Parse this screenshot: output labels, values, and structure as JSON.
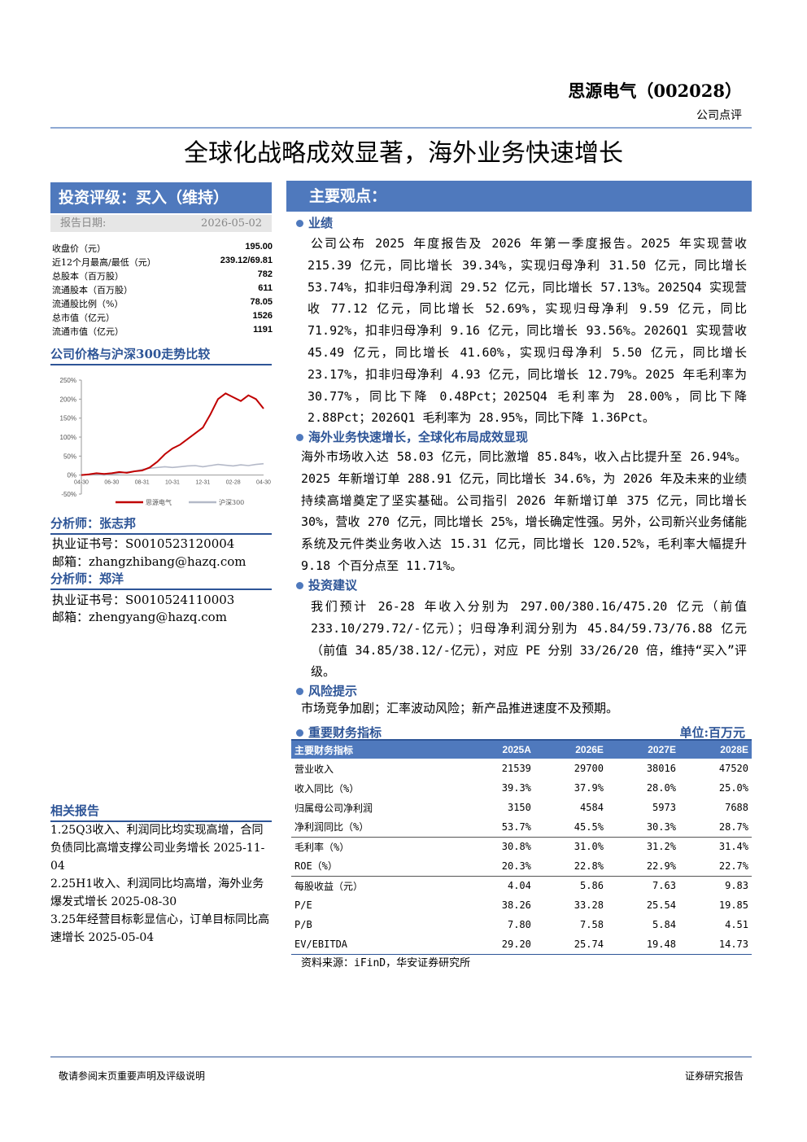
{
  "header": {
    "company": "思源电气（002028）",
    "doc_type": "公司点评"
  },
  "title": "全球化战略成效显著，海外业务快速增长",
  "rating": {
    "text": "投资评级：买入（维持）",
    "date_label": "报告日期:",
    "date": "2026-05-02"
  },
  "stats": [
    [
      "收盘价（元）",
      "195.00"
    ],
    [
      "近12个月最高/最低（元）",
      "239.12/69.81"
    ],
    [
      "总股本（百万股）",
      "782"
    ],
    [
      "流通股本（百万股）",
      "611"
    ],
    [
      "流通股比例（%）",
      "78.05"
    ],
    [
      "总市值（亿元）",
      "1526"
    ],
    [
      "流通市值（亿元）",
      "1191"
    ]
  ],
  "chart_data": {
    "type": "line",
    "title": "公司价格与沪深300走势比较",
    "categories": [
      "04-30",
      null,
      null,
      null,
      "06-30",
      null,
      null,
      null,
      "08-31",
      null,
      null,
      null,
      "10-31",
      null,
      null,
      null,
      "12-31",
      null,
      null,
      null,
      "02-28",
      null,
      null,
      null,
      "04-30"
    ],
    "series": [
      {
        "name": "思源电气",
        "color": "#c00000",
        "values": [
          0,
          2,
          5,
          3,
          5,
          8,
          6,
          10,
          12,
          20,
          35,
          55,
          70,
          80,
          95,
          110,
          125,
          160,
          200,
          215,
          205,
          195,
          210,
          200,
          175
        ]
      },
      {
        "name": "沪深300",
        "color": "#b4b9c8",
        "values": [
          0,
          1,
          2,
          0,
          3,
          5,
          8,
          10,
          15,
          18,
          20,
          22,
          20,
          22,
          24,
          25,
          22,
          25,
          28,
          26,
          24,
          27,
          25,
          28,
          30
        ]
      }
    ],
    "ylim": [
      -50,
      250
    ],
    "yticks": [
      {
        "value": 250,
        "label": "250%"
      },
      {
        "value": 200,
        "label": "200%"
      },
      {
        "value": 150,
        "label": "150%"
      },
      {
        "value": 100,
        "label": "100%"
      },
      {
        "value": 50,
        "label": "50%"
      },
      {
        "value": 0,
        "label": "0%"
      },
      {
        "value": -50,
        "label": "-50%"
      }
    ],
    "grid": false,
    "legend": "bottom"
  },
  "analysts": [
    {
      "heading": "分析师：张志邦",
      "license": "执业证书号：S0010523120004",
      "email": "邮箱：zhangzhibang@hazq.com"
    },
    {
      "heading": "分析师：郑洋",
      "license": "执业证书号：S0010524110003",
      "email": "邮箱：zhengyang@hazq.com"
    }
  ],
  "related": {
    "heading": "相关报告",
    "items": [
      "1.25Q3收入、利润同比均实现高增，合同负债同比高增支撑公司业务增长 2025-11-04",
      "2.25H1收入、利润同比均高增，海外业务爆发式增长 2025-08-30",
      "3.25年经营目标彰显信心，订单目标同比高速增长 2025-05-04"
    ]
  },
  "main": {
    "heading": "主要观点：",
    "sections": [
      {
        "heading": "业绩",
        "text": "公司公布 2025 年度报告及 2026 年第一季度报告。2025 年实现营收 215.39 亿元，同比增长 39.34%，实现归母净利 31.50 亿元，同比增长 53.74%，扣非归母净利润 29.52 亿元，同比增长 57.13%。2025Q4 实现营收 77.12 亿元，同比增长 52.69%，实现归母净利 9.59 亿元，同比 71.92%，扣非归母净利 9.16 亿元，同比增长 93.56%。2026Q1 实现营收 45.49 亿元，同比增长 41.60%，实现归母净利 5.50 亿元，同比增长 23.17%，扣非归母净利 4.93 亿元，同比增长 12.79%。2025 年毛利率为 30.77%，同比下降 0.48Pct；2025Q4 毛利率为 28.00%，同比下降 2.88Pct；2026Q1 毛利率为 28.95%，同比下降 1.36Pct。"
      },
      {
        "heading": "海外业务快速增长，全球化布局成效显现",
        "text": "海外市场收入达 58.03 亿元，同比激增 85.84%，收入占比提升至 26.94%。2025 年新增订单 288.91 亿元，同比增长 34.6%，为 2026 年及未来的业绩持续高增奠定了坚实基础。公司指引 2026 年新增订单 375 亿元，同比增长 30%，营收 270 亿元，同比增长 25%，增长确定性强。另外，公司新兴业务储能系统及元件类业务收入达 15.31 亿元，同比增长 120.52%，毛利率大幅提升 9.18 个百分点至 11.71%。"
      },
      {
        "heading": "投资建议",
        "text": "我们预计 26-28 年收入分别为 297.00/380.16/475.20 亿元（前值 233.10/279.72/-亿元）；归母净利润分别为 45.84/59.73/76.88 亿元（前值 34.85/38.12/-亿元），对应 PE 分别 33/26/20 倍，维持“买入”评级。"
      },
      {
        "heading": "风险提示",
        "text": "市场竞争加剧；汇率波动风险；新产品推进速度不及预期。"
      }
    ]
  },
  "table": {
    "heading": "重要财务指标",
    "unit": "单位:百万元",
    "columns": [
      "主要财务指标",
      "2025A",
      "2026E",
      "2027E",
      "2028E"
    ],
    "rows": [
      [
        "营业收入",
        "21539",
        "29700",
        "38016",
        "47520"
      ],
      [
        "收入同比（%）",
        "39.3%",
        "37.9%",
        "28.0%",
        "25.0%"
      ],
      [
        "归属母公司净利润",
        "3150",
        "4584",
        "5973",
        "7688"
      ],
      [
        "净利润同比（%）",
        "53.7%",
        "45.5%",
        "30.3%",
        "28.7%"
      ],
      [
        "毛利率（%）",
        "30.8%",
        "31.0%",
        "31.2%",
        "31.4%"
      ],
      [
        "ROE（%）",
        "20.3%",
        "22.8%",
        "22.9%",
        "22.7%"
      ],
      [
        "每股收益（元）",
        "4.04",
        "5.86",
        "7.63",
        "9.83"
      ],
      [
        "P/E",
        "38.26",
        "33.28",
        "25.54",
        "19.85"
      ],
      [
        "P/B",
        "7.80",
        "7.58",
        "5.84",
        "4.51"
      ],
      [
        "EV/EBITDA",
        "29.20",
        "25.74",
        "19.48",
        "14.73"
      ]
    ],
    "source": "资料来源：iFinD，华安证券研究所"
  },
  "footer": {
    "left": "敬请参阅末页重要声明及评级说明",
    "right": "证券研究报告"
  }
}
